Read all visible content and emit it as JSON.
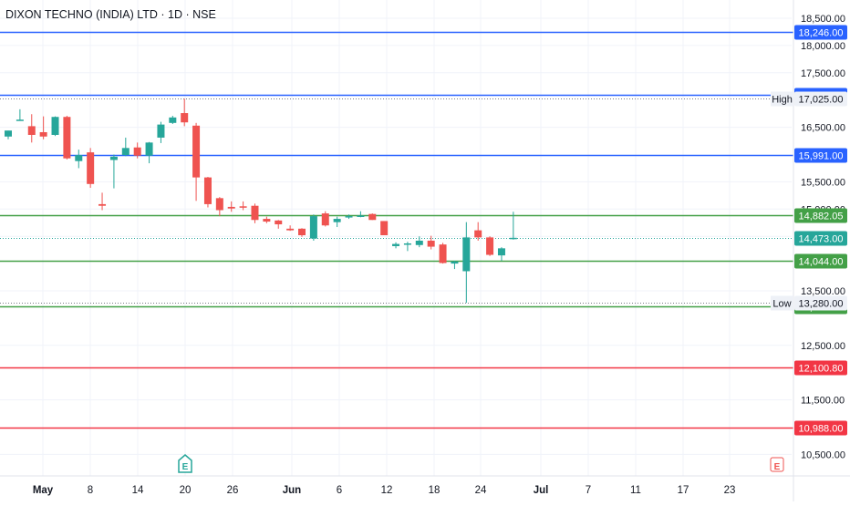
{
  "title": "DIXON TECHNO (INDIA) LTD · 1D · NSE",
  "colors": {
    "up": "#26a69a",
    "down": "#ef5350",
    "blue_line": "#2962ff",
    "green_line": "#43a047",
    "red_line": "#f23645",
    "grid": "#f0f3fa",
    "axis_text": "#131722",
    "tag_gray": "#eef1f7"
  },
  "chart_data": {
    "type": "candlestick",
    "y_ticks": [
      "18,500.00",
      "18,000.00",
      "17,500.00",
      "16,500.00",
      "15,500.00",
      "15,000.00",
      "14,500.00",
      "13,500.00",
      "12,500.00",
      "11,500.00",
      "10,500.00"
    ],
    "x_ticks": [
      "May",
      "8",
      "14",
      "20",
      "26",
      "Jun",
      "6",
      "12",
      "18",
      "24",
      "Jul",
      "7",
      "11",
      "17",
      "23"
    ],
    "grid": true,
    "horizontal_lines": [
      {
        "label": "18,246.00",
        "value": 18246,
        "color": "blue"
      },
      {
        "label": "17,100.00",
        "value": 17100,
        "color": "blue"
      },
      {
        "label": "15,991.00",
        "value": 15991,
        "color": "blue"
      },
      {
        "label": "14,882.05",
        "value": 14882.05,
        "color": "green"
      },
      {
        "label": "14,044.00",
        "value": 14044,
        "color": "green"
      },
      {
        "label": "13,213.60",
        "value": 13213.6,
        "color": "green"
      },
      {
        "label": "12,100.80",
        "value": 12100.8,
        "color": "red"
      },
      {
        "label": "10,988.00",
        "value": 10988,
        "color": "red"
      }
    ],
    "markers": [
      {
        "name": "High",
        "label": "17,025.00",
        "value": 17025
      },
      {
        "name": "Low",
        "label": "13,280.00",
        "value": 13280
      },
      {
        "name": "",
        "label": "14,473.00",
        "value": 14473
      }
    ],
    "event_badges": [
      "E",
      "E"
    ],
    "candles": [
      {
        "o": 16330,
        "h": 16440,
        "l": 16280,
        "c": 16440
      },
      {
        "o": 16640,
        "h": 16830,
        "l": 16620,
        "c": 16640
      },
      {
        "o": 16520,
        "h": 16740,
        "l": 16220,
        "c": 16360
      },
      {
        "o": 16410,
        "h": 16700,
        "l": 16280,
        "c": 16330
      },
      {
        "o": 16360,
        "h": 16700,
        "l": 16340,
        "c": 16690
      },
      {
        "o": 16690,
        "h": 16710,
        "l": 15910,
        "c": 15930
      },
      {
        "o": 15880,
        "h": 16090,
        "l": 15750,
        "c": 15990
      },
      {
        "o": 16040,
        "h": 16120,
        "l": 15390,
        "c": 15460
      },
      {
        "o": 15090,
        "h": 15300,
        "l": 14980,
        "c": 15060
      },
      {
        "o": 15900,
        "h": 16000,
        "l": 15380,
        "c": 15960
      },
      {
        "o": 15990,
        "h": 16310,
        "l": 15970,
        "c": 16120
      },
      {
        "o": 16130,
        "h": 16220,
        "l": 15930,
        "c": 15980
      },
      {
        "o": 15980,
        "h": 16230,
        "l": 15840,
        "c": 16220
      },
      {
        "o": 16310,
        "h": 16600,
        "l": 16210,
        "c": 16550
      },
      {
        "o": 16580,
        "h": 16710,
        "l": 16560,
        "c": 16680
      },
      {
        "o": 16760,
        "h": 17025,
        "l": 16520,
        "c": 16590
      },
      {
        "o": 16530,
        "h": 16580,
        "l": 15150,
        "c": 15580
      },
      {
        "o": 15580,
        "h": 15590,
        "l": 15030,
        "c": 15090
      },
      {
        "o": 15200,
        "h": 15220,
        "l": 14870,
        "c": 14980
      },
      {
        "o": 15040,
        "h": 15140,
        "l": 14950,
        "c": 15010
      },
      {
        "o": 15050,
        "h": 15140,
        "l": 14980,
        "c": 15040
      },
      {
        "o": 15060,
        "h": 15100,
        "l": 14740,
        "c": 14800
      },
      {
        "o": 14820,
        "h": 14860,
        "l": 14740,
        "c": 14770
      },
      {
        "o": 14790,
        "h": 14800,
        "l": 14640,
        "c": 14720
      },
      {
        "o": 14640,
        "h": 14700,
        "l": 14600,
        "c": 14610
      },
      {
        "o": 14640,
        "h": 14650,
        "l": 14490,
        "c": 14520
      },
      {
        "o": 14460,
        "h": 14900,
        "l": 14420,
        "c": 14870
      },
      {
        "o": 14920,
        "h": 14960,
        "l": 14680,
        "c": 14700
      },
      {
        "o": 14760,
        "h": 14860,
        "l": 14670,
        "c": 14820
      },
      {
        "o": 14860,
        "h": 14900,
        "l": 14820,
        "c": 14870
      },
      {
        "o": 14880,
        "h": 14960,
        "l": 14850,
        "c": 14880
      },
      {
        "o": 14910,
        "h": 14920,
        "l": 14800,
        "c": 14800
      },
      {
        "o": 14780,
        "h": 14780,
        "l": 14520,
        "c": 14520
      },
      {
        "o": 14320,
        "h": 14390,
        "l": 14280,
        "c": 14360
      },
      {
        "o": 14370,
        "h": 14400,
        "l": 14230,
        "c": 14370
      },
      {
        "o": 14340,
        "h": 14500,
        "l": 14300,
        "c": 14420
      },
      {
        "o": 14420,
        "h": 14510,
        "l": 14260,
        "c": 14310
      },
      {
        "o": 14350,
        "h": 14380,
        "l": 14000,
        "c": 14010
      },
      {
        "o": 14000,
        "h": 14050,
        "l": 13900,
        "c": 14040
      },
      {
        "o": 13860,
        "h": 14760,
        "l": 13280,
        "c": 14480
      },
      {
        "o": 14610,
        "h": 14760,
        "l": 14420,
        "c": 14480
      },
      {
        "o": 14480,
        "h": 14500,
        "l": 14140,
        "c": 14160
      },
      {
        "o": 14150,
        "h": 14300,
        "l": 14050,
        "c": 14280
      },
      {
        "o": 14450,
        "h": 14950,
        "l": 14440,
        "c": 14473
      }
    ],
    "y_range": [
      10300,
      18650
    ]
  }
}
